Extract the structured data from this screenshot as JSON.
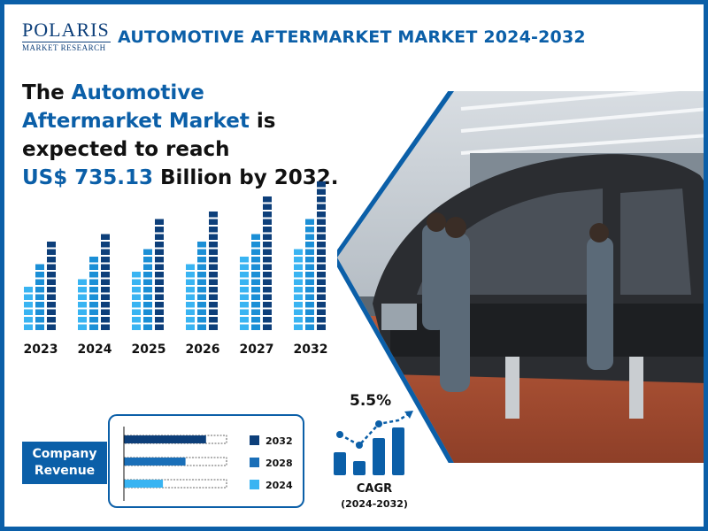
{
  "brand": {
    "name": "POLARIS",
    "sub": "MARKET RESEARCH"
  },
  "title": "AUTOMOTIVE AFTERMARKET MARKET 2024-2032",
  "headline": {
    "part1": "The ",
    "highlight1": "Automotive Aftermarket Market",
    "part2": " is expected to reach ",
    "highlight2": "US$ 735.13",
    "part3": " Billion by 2032."
  },
  "colors": {
    "brand": "#0b5fa8",
    "dark": "#0d3f7a",
    "mid": "#1b8fd6",
    "light": "#39b4f2"
  },
  "chart_data": [
    {
      "type": "bar",
      "categories": [
        "2023",
        "2024",
        "2025",
        "2026",
        "2027",
        "2032"
      ],
      "series": [
        {
          "values": [
            6,
            7,
            8,
            9,
            10,
            11
          ]
        },
        {
          "values": [
            9,
            10,
            11,
            12,
            13,
            15
          ]
        },
        {
          "values": [
            12,
            13,
            15,
            16,
            18,
            20
          ]
        }
      ]
    },
    {
      "type": "bar",
      "orientation": "horizontal",
      "title": "Company Revenue",
      "categories": [
        "2032",
        "2028",
        "2024"
      ],
      "values": [
        0.8,
        0.6,
        0.38
      ]
    }
  ],
  "revenue": {
    "label": "Company Revenue",
    "legend": [
      "2032",
      "2028",
      "2024"
    ]
  },
  "cagr": {
    "value": "5.5%",
    "label": "CAGR",
    "range": "(2024-2032)"
  },
  "icons": {
    "cagr": "growth-chart-icon",
    "photo": "car-factory-photo"
  }
}
